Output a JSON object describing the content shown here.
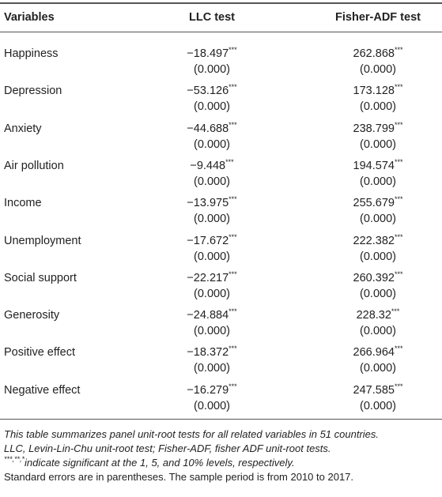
{
  "table": {
    "header": [
      "Variables",
      "LLC test",
      "Fisher-ADF test"
    ],
    "rows": [
      {
        "variable": "Happiness",
        "llc": "−18.497",
        "llc_sig": "***",
        "llc_p": "(0.000)",
        "fisher": "262.868",
        "fisher_sig": "***",
        "fisher_p": "(0.000)"
      },
      {
        "variable": "Depression",
        "llc": "−53.126",
        "llc_sig": "***",
        "llc_p": "(0.000)",
        "fisher": "173.128",
        "fisher_sig": "***",
        "fisher_p": "(0.000)"
      },
      {
        "variable": "Anxiety",
        "llc": "−44.688",
        "llc_sig": "***",
        "llc_p": "(0.000)",
        "fisher": "238.799",
        "fisher_sig": "***",
        "fisher_p": "(0.000)"
      },
      {
        "variable": "Air pollution",
        "llc": "−9.448",
        "llc_sig": "***",
        "llc_p": "(0.000)",
        "fisher": "194.574",
        "fisher_sig": "***",
        "fisher_p": "(0.000)"
      },
      {
        "variable": "Income",
        "llc": "−13.975",
        "llc_sig": "***",
        "llc_p": "(0.000)",
        "fisher": "255.679",
        "fisher_sig": "***",
        "fisher_p": "(0.000)"
      },
      {
        "variable": "Unemployment",
        "llc": "−17.672",
        "llc_sig": "***",
        "llc_p": "(0.000)",
        "fisher": "222.382",
        "fisher_sig": "***",
        "fisher_p": "(0.000)"
      },
      {
        "variable": "Social support",
        "llc": "−22.217",
        "llc_sig": "***",
        "llc_p": "(0.000)",
        "fisher": "260.392",
        "fisher_sig": "***",
        "fisher_p": "(0.000)"
      },
      {
        "variable": "Generosity",
        "llc": "−24.884",
        "llc_sig": "***",
        "llc_p": "(0.000)",
        "fisher": "228.32",
        "fisher_sig": "***",
        "fisher_p": "(0.000)"
      },
      {
        "variable": "Positive effect",
        "llc": "−18.372",
        "llc_sig": "***",
        "llc_p": "(0.000)",
        "fisher": "266.964",
        "fisher_sig": "***",
        "fisher_p": "(0.000)"
      },
      {
        "variable": "Negative effect",
        "llc": "−16.279",
        "llc_sig": "***",
        "llc_p": "(0.000)",
        "fisher": "247.585",
        "fisher_sig": "***",
        "fisher_p": "(0.000)"
      }
    ]
  },
  "notes": {
    "line1": "This table summarizes panel unit-root tests for all related variables in 51 countries.",
    "line2": "LLC, Levin-Lin-Chu unit-root test; Fisher-ADF, fisher ADF unit-root tests.",
    "line3_sig": "***,**,*",
    "line3": "indicate significant at the 1, 5, and 10% levels, respectively.",
    "line4": "Standard errors are in parentheses. The sample period is from 2010 to 2017."
  }
}
